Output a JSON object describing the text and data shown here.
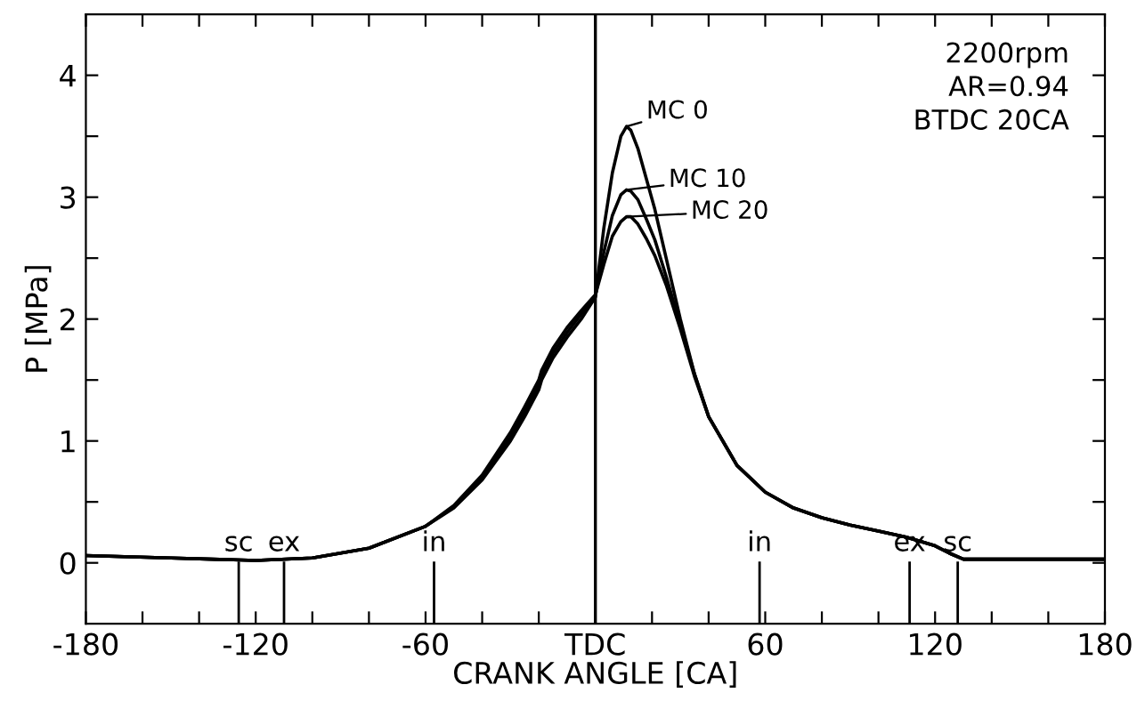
{
  "chart_data": {
    "type": "line",
    "xlabel": "CRANK ANGLE [CA]",
    "ylabel": "P [MPa]",
    "x": [
      -180,
      -150,
      -120,
      -100,
      -80,
      -60,
      -50,
      -40,
      -30,
      -25,
      -20,
      -19,
      -15,
      -10,
      -5,
      0,
      3,
      6,
      9,
      11,
      12.5,
      15,
      18,
      21,
      25,
      30,
      35,
      40,
      50,
      60,
      70,
      80,
      90,
      100,
      110,
      120,
      125,
      130,
      140,
      180
    ],
    "series": [
      {
        "name": "MC 0",
        "color": "#000000",
        "values": [
          0.06,
          0.04,
          0.02,
          0.04,
          0.12,
          0.3,
          0.45,
          0.68,
          1.0,
          1.2,
          1.42,
          1.5,
          1.68,
          1.85,
          2.0,
          2.18,
          2.75,
          3.2,
          3.5,
          3.58,
          3.55,
          3.4,
          3.15,
          2.9,
          2.5,
          2.0,
          1.55,
          1.2,
          0.8,
          0.58,
          0.45,
          0.37,
          0.31,
          0.26,
          0.21,
          0.14,
          0.08,
          0.03,
          0.03,
          0.03
        ]
      },
      {
        "name": "MC 10",
        "color": "#000000",
        "values": [
          0.06,
          0.04,
          0.02,
          0.04,
          0.12,
          0.3,
          0.46,
          0.7,
          1.03,
          1.24,
          1.46,
          1.54,
          1.72,
          1.89,
          2.04,
          2.19,
          2.55,
          2.85,
          3.02,
          3.06,
          3.05,
          2.98,
          2.82,
          2.65,
          2.35,
          1.95,
          1.55,
          1.2,
          0.8,
          0.58,
          0.45,
          0.37,
          0.31,
          0.26,
          0.21,
          0.14,
          0.08,
          0.03,
          0.03,
          0.03
        ]
      },
      {
        "name": "MC 20",
        "color": "#000000",
        "values": [
          0.06,
          0.04,
          0.02,
          0.04,
          0.12,
          0.3,
          0.47,
          0.72,
          1.07,
          1.28,
          1.5,
          1.58,
          1.76,
          1.93,
          2.07,
          2.2,
          2.45,
          2.68,
          2.8,
          2.84,
          2.84,
          2.78,
          2.66,
          2.52,
          2.28,
          1.92,
          1.53,
          1.2,
          0.8,
          0.58,
          0.45,
          0.37,
          0.31,
          0.26,
          0.21,
          0.14,
          0.08,
          0.03,
          0.03,
          0.03
        ]
      }
    ],
    "xlim": [
      -180,
      180
    ],
    "xticks": [
      -180,
      {
        "value": -160,
        "label": null
      },
      {
        "value": -140,
        "label": null
      },
      -120,
      {
        "value": -100,
        "label": null
      },
      {
        "value": -80,
        "label": null
      },
      -60,
      {
        "value": -40,
        "label": null
      },
      {
        "value": -20,
        "label": null
      },
      {
        "value": 0,
        "label": "TDC"
      },
      {
        "value": 20,
        "label": null
      },
      {
        "value": 40,
        "label": null
      },
      60,
      {
        "value": 80,
        "label": null
      },
      {
        "value": 100,
        "label": null
      },
      120,
      {
        "value": 140,
        "label": null
      },
      {
        "value": 160,
        "label": null
      },
      180
    ],
    "ylim": [
      -0.5,
      4.5
    ],
    "yticks": [
      0,
      {
        "value": 0.5,
        "label": null
      },
      1,
      {
        "value": 1.5,
        "label": null
      },
      2,
      {
        "value": 2.5,
        "label": null
      },
      3,
      {
        "value": 3.5,
        "label": null
      },
      4
    ],
    "ref_lines": [
      {
        "axis": "x",
        "value": 0,
        "color": "#000000"
      },
      {
        "axis": "x",
        "value": -126,
        "label": "sc",
        "color": "#000000"
      },
      {
        "axis": "x",
        "value": -110,
        "label": "ex",
        "color": "#000000"
      },
      {
        "axis": "x",
        "value": -57,
        "label": "in",
        "color": "#000000"
      },
      {
        "axis": "x",
        "value": 58,
        "label": "in",
        "color": "#000000"
      },
      {
        "axis": "x",
        "value": 111,
        "label": "ex",
        "color": "#000000"
      },
      {
        "axis": "x",
        "value": 128,
        "label": "sc",
        "color": "#000000"
      }
    ],
    "annotations": [
      "2200rpm",
      "AR=0.94",
      "BTDC 20CA"
    ],
    "legend": "top",
    "marker": "none",
    "line_style": "solid",
    "grid": false
  }
}
